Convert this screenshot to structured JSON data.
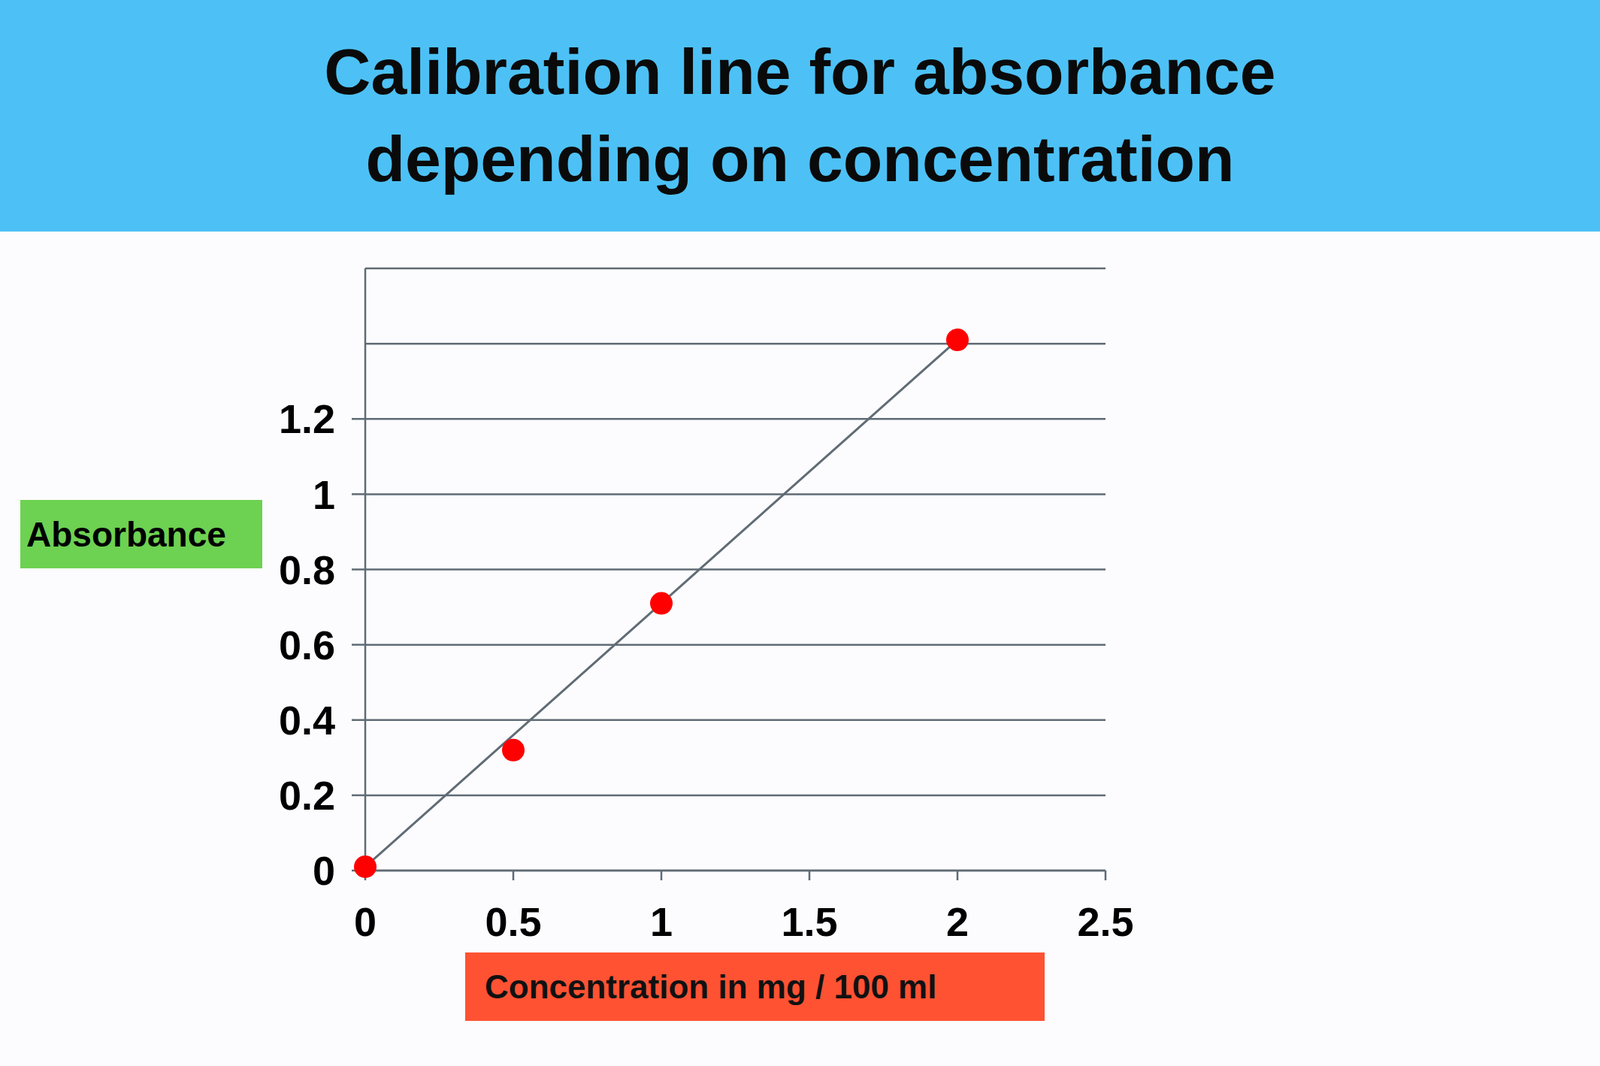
{
  "chart_data": {
    "type": "scatter",
    "title": "Calibration line for absorbance\ndepending on concentration",
    "x_label": "Concentration in mg / 100 ml",
    "y_label": "Absorbance",
    "x": [
      0,
      0.5,
      1,
      2
    ],
    "values": [
      0.01,
      0.32,
      0.71,
      1.41
    ],
    "color": "#ff0000",
    "marker": "circle",
    "trend_line": {
      "x": [
        0,
        2
      ],
      "values": [
        0.01,
        1.41
      ],
      "color": "#5f6b75"
    },
    "xlim": [
      0,
      2.5
    ],
    "xticks": [
      0,
      0.5,
      1,
      1.5,
      2,
      2.5
    ],
    "ylim": [
      0,
      1.6
    ],
    "yticks": [
      0,
      0.2,
      0.4,
      0.6,
      0.8,
      1,
      1.2
    ],
    "grid": true
  }
}
